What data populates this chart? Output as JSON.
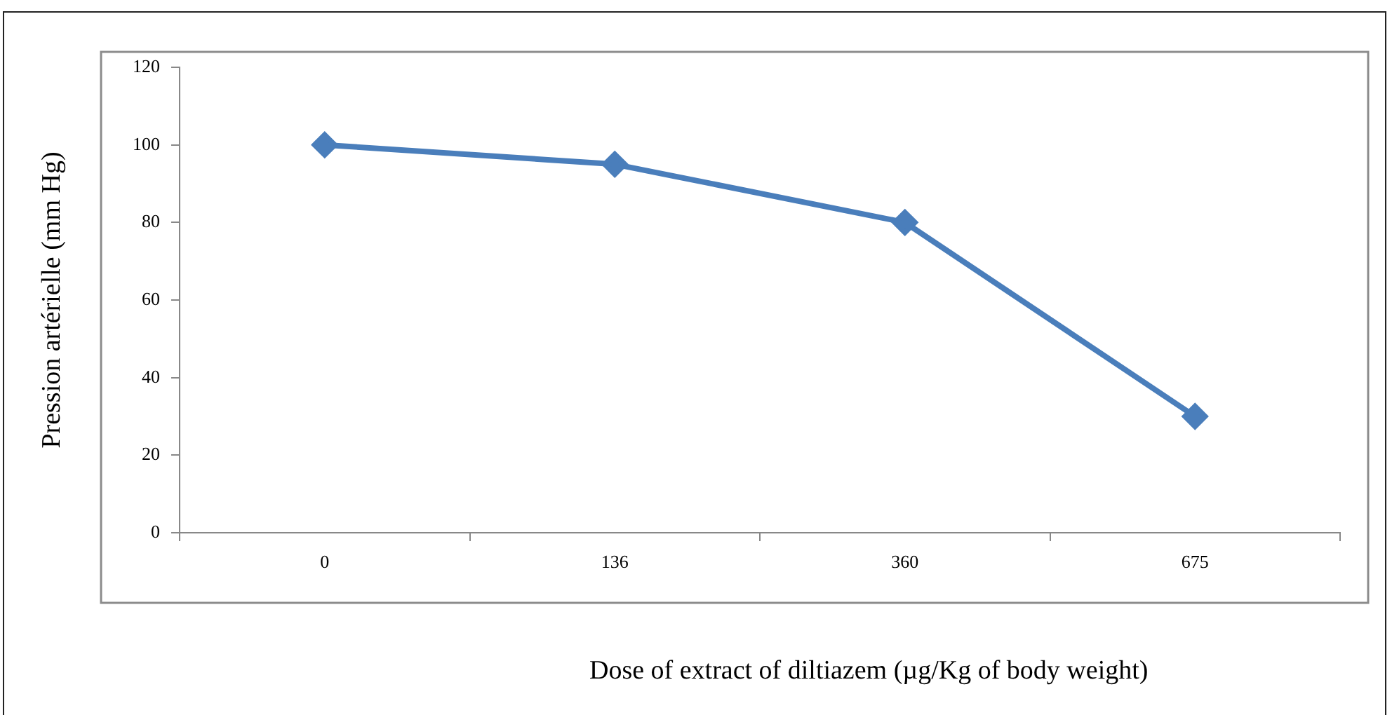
{
  "chart_data": {
    "type": "line",
    "xlabel": "Dose of extract of diltiazem (µg/Kg of body weight)",
    "ylabel": "Pression artérielle (mm Hg)",
    "categories": [
      "0",
      "136",
      "360",
      "675"
    ],
    "series": [
      {
        "color": "#4a7ebb",
        "values": [
          100,
          95,
          80,
          30
        ]
      }
    ],
    "ylim": [
      0,
      120
    ],
    "yticks": [
      0,
      20,
      40,
      60,
      80,
      100,
      120
    ],
    "marker": "diamond",
    "line_style": "solid"
  }
}
